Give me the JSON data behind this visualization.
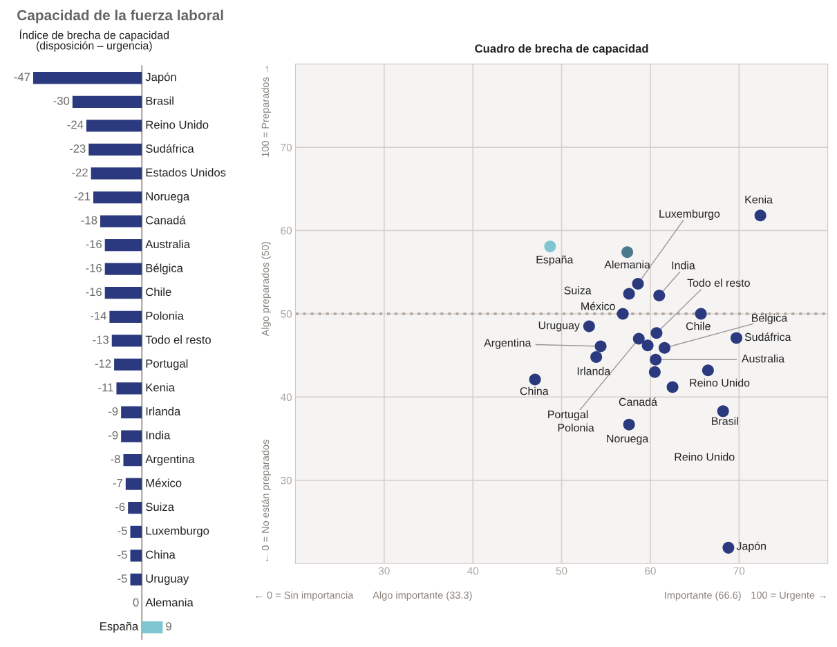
{
  "chart_data": [
    {
      "type": "bar",
      "orientation": "horizontal",
      "title": "Capacidad de la fuerza laboral",
      "subtitle": "Índice de brecha de capacidad\n(disposición – urgencia)",
      "categories": [
        "Japón",
        "Brasil",
        "Reino Unido",
        "Sudáfrica",
        "Estados Unidos",
        "Noruega",
        "Canadá",
        "Australia",
        "Bélgica",
        "Chile",
        "Polonia",
        "Todo el resto",
        "Portugal",
        "Kenia",
        "Irlanda",
        "India",
        "Argentina",
        "México",
        "Suiza",
        "Luxemburgo",
        "China",
        "Uruguay",
        "Alemania",
        "España"
      ],
      "values": [
        -47,
        -30,
        -24,
        -23,
        -22,
        -21,
        -18,
        -16,
        -16,
        -16,
        -14,
        -13,
        -12,
        -11,
        -9,
        -9,
        -8,
        -7,
        -6,
        -5,
        -5,
        -5,
        0,
        9
      ],
      "colors": [
        "#2b3a7e",
        "#2b3a7e",
        "#2b3a7e",
        "#2b3a7e",
        "#2b3a7e",
        "#2b3a7e",
        "#2b3a7e",
        "#2b3a7e",
        "#2b3a7e",
        "#2b3a7e",
        "#2b3a7e",
        "#2b3a7e",
        "#2b3a7e",
        "#2b3a7e",
        "#2b3a7e",
        "#2b3a7e",
        "#2b3a7e",
        "#2b3a7e",
        "#2b3a7e",
        "#2b3a7e",
        "#2b3a7e",
        "#2b3a7e",
        "#2b3a7e",
        "#7fc6d2"
      ],
      "data_labels": true,
      "tick_labels": "y"
    },
    {
      "type": "scatter",
      "title": "Cuadro de brecha de capacidad",
      "x": [
        72.4,
        58.6,
        61.0,
        60.7,
        61.6,
        69.7,
        60.6,
        66.5,
        62.5,
        68.2,
        68.8,
        57.6,
        60.5,
        47.0,
        53.9,
        54.4,
        53.1,
        56.9,
        57.6,
        57.4,
        48.7,
        65.7,
        58.7,
        59.7
      ],
      "values": [
        61.8,
        53.6,
        52.2,
        47.7,
        45.9,
        47.1,
        44.5,
        43.2,
        41.2,
        38.3,
        21.9,
        36.7,
        43.0,
        42.1,
        44.8,
        46.1,
        48.5,
        50.0,
        52.4,
        57.4,
        58.1,
        50.0,
        47.0,
        46.2
      ],
      "colors": [
        "#2b3a7e",
        "#2b3a7e",
        "#2b3a7e",
        "#2b3a7e",
        "#2b3a7e",
        "#2b3a7e",
        "#2b3a7e",
        "#2b3a7e",
        "#2b3a7e",
        "#2b3a7e",
        "#2b3a7e",
        "#2b3a7e",
        "#2b3a7e",
        "#2b3a7e",
        "#2b3a7e",
        "#2b3a7e",
        "#2b3a7e",
        "#2b3a7e",
        "#2b3a7e",
        "#4a7a8c",
        "#7fc6d2",
        "#2b3a7e",
        "#2b3a7e",
        "#2b3a7e"
      ],
      "marker": "circle",
      "xlim": [
        20,
        80
      ],
      "ylim": [
        20,
        80
      ],
      "xticks": [
        30,
        40,
        50,
        60,
        70
      ],
      "yticks": [
        30,
        40,
        50,
        60,
        70
      ],
      "grid": true,
      "ref_lines": [
        {
          "axis": "y",
          "value": 50,
          "color": "#b5aca5",
          "line_style": "dotted"
        }
      ],
      "annotations": [
        {
          "text": "Kenia",
          "x": 72.4,
          "y": 61.8
        },
        {
          "text": "Luxemburgo",
          "x": 58.6,
          "y": 53.6
        },
        {
          "text": "India",
          "x": 61.0,
          "y": 52.2
        },
        {
          "text": "Todo el resto",
          "x": 60.7,
          "y": 47.7
        },
        {
          "text": "Bélgica",
          "x": 61.6,
          "y": 45.9
        },
        {
          "text": "Sudáfrica",
          "x": 69.7,
          "y": 47.1
        },
        {
          "text": "Australia",
          "x": 60.6,
          "y": 44.5
        },
        {
          "text": "Reino Unido",
          "x": 66.5,
          "y": 43.2
        },
        {
          "text": "Brasil",
          "x": 68.2,
          "y": 38.3
        },
        {
          "text": "Japón",
          "x": 68.8,
          "y": 21.9
        },
        {
          "text": "Noruega",
          "x": 57.6,
          "y": 36.7
        },
        {
          "text": "Canadá",
          "x": 60.5,
          "y": 43.0
        },
        {
          "text": "China",
          "x": 47.0,
          "y": 42.1
        },
        {
          "text": "Irlanda",
          "x": 53.9,
          "y": 44.8
        },
        {
          "text": "Argentina",
          "x": 54.4,
          "y": 46.1
        },
        {
          "text": "Uruguay",
          "x": 53.1,
          "y": 48.5
        },
        {
          "text": "México",
          "x": 56.9,
          "y": 50.0
        },
        {
          "text": "Alemania",
          "x": 57.4,
          "y": 57.4
        },
        {
          "text": "España",
          "x": 48.7,
          "y": 58.1
        },
        {
          "text": "Chile",
          "x": 65.7,
          "y": 50.0
        },
        {
          "text": "Portugal",
          "x": 58.7,
          "y": 47.0
        },
        "Suiza",
        "Reino Unido",
        "Polonia",
        "← 0 = No están preparados",
        "Algo preparados (50)",
        "100 = Preparados →",
        "← 0 = Sin importancia",
        "Algo importante (33.3)",
        "Importante (66.6)",
        "100 = Urgente →"
      ]
    }
  ]
}
